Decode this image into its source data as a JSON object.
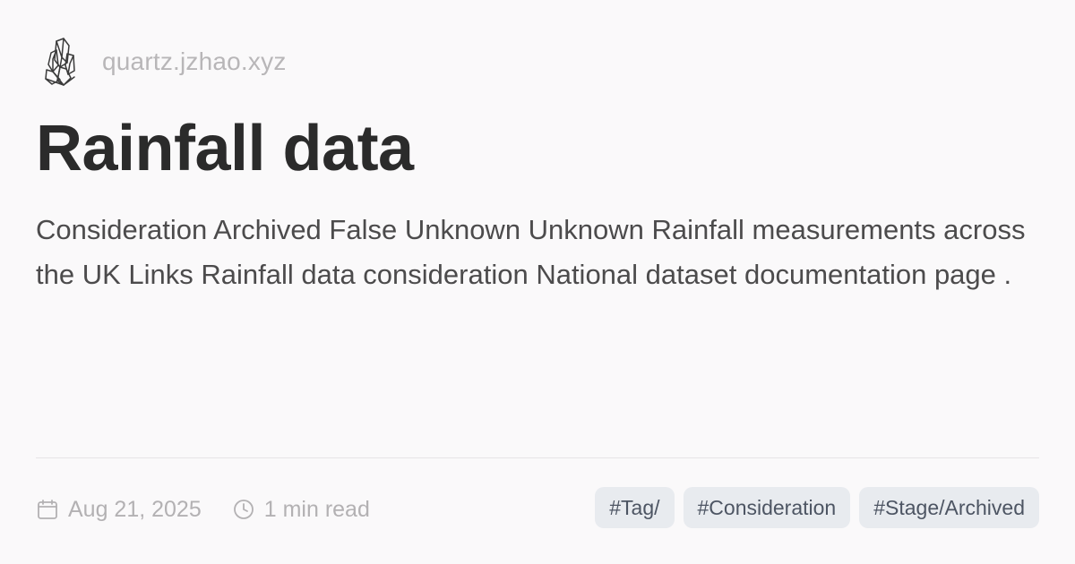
{
  "site": {
    "url": "quartz.jzhao.xyz",
    "logo_icon": "crystal-cluster-icon"
  },
  "page": {
    "title": "Rainfall data",
    "description": "Consideration Archived False Unknown Unknown Rainfall measurements across the UK Links Rainfall data consideration National dataset documentation page ."
  },
  "meta": {
    "date": "Aug 21, 2025",
    "reading_time": "1 min read",
    "date_icon": "calendar-icon",
    "time_icon": "clock-icon"
  },
  "tags": [
    "#Tag/",
    "#Consideration",
    "#Stage/Archived"
  ],
  "colors": {
    "background": "#faf9fa",
    "title": "#2b2b2b",
    "body_text": "#4c4b4c",
    "muted_text": "#b3b1b3",
    "divider": "#e6e4e6",
    "tag_background": "#e8ebef",
    "tag_text": "#4d5563"
  }
}
